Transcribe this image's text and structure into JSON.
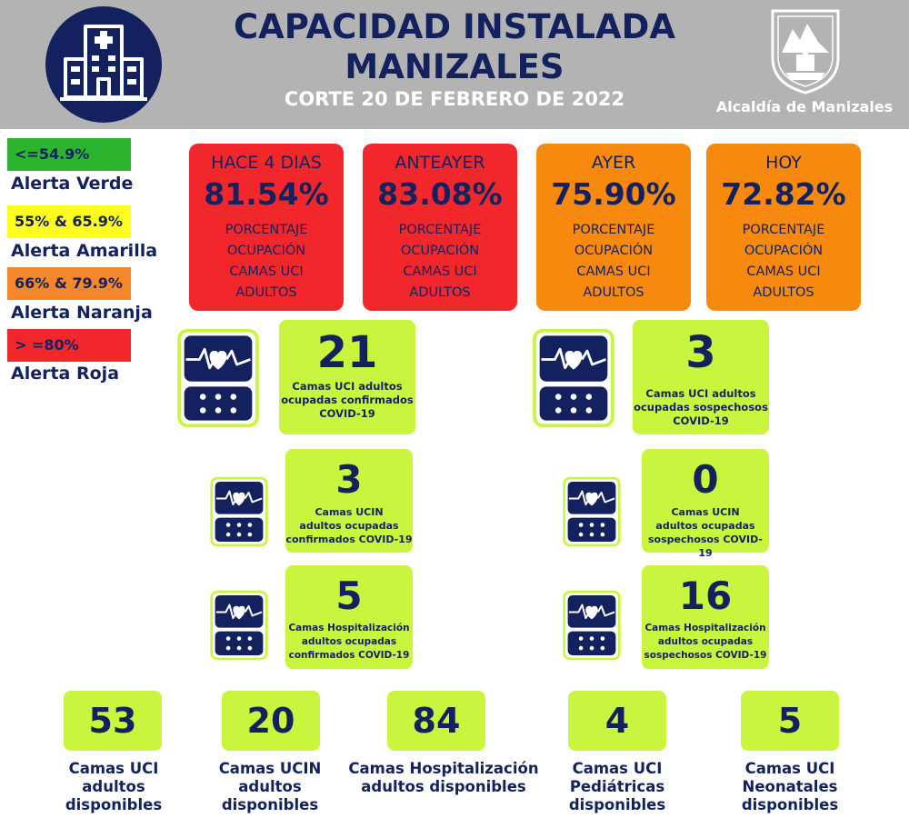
{
  "header": {
    "title_line1": "CAPACIDAD INSTALADA",
    "title_line2": "MANIZALES",
    "subtitle": "CORTE 20 DE FEBRERO DE 2022",
    "alcaldia": "Alcaldía de Manizales",
    "hospital_icon": "hospital-icon",
    "crest_icon": "city-crest-icon"
  },
  "legend": [
    {
      "range": "<=54.9%",
      "label": "Alerta Verde",
      "color": "#2db42f"
    },
    {
      "range": "55% & 65.9%",
      "label": "Alerta Amarilla",
      "color": "#ffff1e"
    },
    {
      "range": "66% & 79.9%",
      "label": "Alerta Naranja",
      "color": "#f5862a"
    },
    {
      "range": "> =80%",
      "label": "Alerta Roja",
      "color": "#f2272c"
    }
  ],
  "cards": [
    {
      "period": "HACE 4 DIAS",
      "pct": "81.54%",
      "desc1": "PORCENTAJE",
      "desc2": "OCUPACIÓN",
      "desc3": "CAMAS UCI",
      "desc4": "ADULTOS",
      "color": "#f2272c"
    },
    {
      "period": "ANTEAYER",
      "pct": "83.08%",
      "desc1": "PORCENTAJE",
      "desc2": "OCUPACIÓN",
      "desc3": "CAMAS UCI",
      "desc4": "ADULTOS",
      "color": "#f2272c"
    },
    {
      "period": "AYER",
      "pct": "75.90%",
      "desc1": "PORCENTAJE",
      "desc2": "OCUPACIÓN",
      "desc3": "CAMAS UCI",
      "desc4": "ADULTOS",
      "color": "#f78a0e"
    },
    {
      "period": "HOY",
      "pct": "72.82%",
      "desc1": "PORCENTAJE",
      "desc2": "OCUPACIÓN",
      "desc3": "CAMAS UCI",
      "desc4": "ADULTOS",
      "color": "#f78a0e"
    }
  ],
  "stats": [
    {
      "num": "21",
      "l1": "Camas UCI adultos",
      "l2": "ocupadas confirmados",
      "l3": "COVID-19"
    },
    {
      "num": "3",
      "l1": "Camas UCI adultos",
      "l2": "ocupadas sospechosos",
      "l3": "COVID-19"
    },
    {
      "num": "3",
      "l1": "Camas  UCIN",
      "l2": "adultos ocupadas",
      "l3": "confirmados COVID-19"
    },
    {
      "num": "0",
      "l1": "Camas  UCIN",
      "l2": "adultos ocupadas",
      "l3": "sospechosos COVID-19"
    },
    {
      "num": "5",
      "l1": "Camas  Hospitalización",
      "l2": "adultos ocupadas",
      "l3": "confirmados COVID-19"
    },
    {
      "num": "16",
      "l1": "Camas  Hospitalización",
      "l2": "adultos ocupadas",
      "l3": "sospechosos COVID-19"
    }
  ],
  "bottom": [
    {
      "num": "53",
      "l1": "Camas UCI",
      "l2": "adultos",
      "l3": "disponibles"
    },
    {
      "num": "20",
      "l1": "Camas UCIN",
      "l2": "adultos",
      "l3": "disponibles"
    },
    {
      "num": "84",
      "l1": "Camas  Hospitalización",
      "l2": "adultos disponibles",
      "l3": ""
    },
    {
      "num": "4",
      "l1": "Camas  UCI",
      "l2": "Pediátricas",
      "l3": "disponibles"
    },
    {
      "num": "5",
      "l1": "Camas  UCI",
      "l2": "Neonatales",
      "l3": "disponibles"
    }
  ],
  "monitor_icon": "heart-monitor-icon"
}
